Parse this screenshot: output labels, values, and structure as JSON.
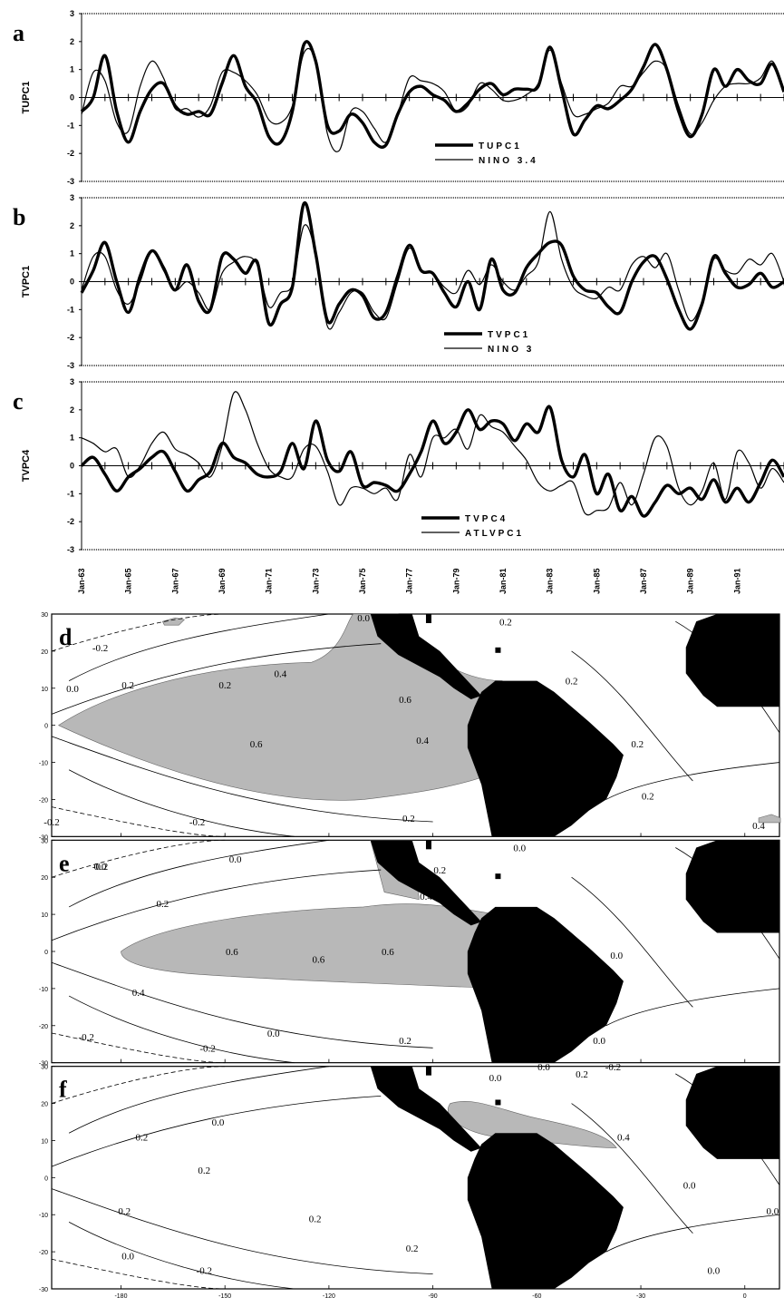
{
  "chart_data": [
    {
      "type": "line",
      "panel_label": "a",
      "ylabel": "TUPC1",
      "ylim": [
        -3,
        3
      ],
      "yticks": [
        "3",
        "2",
        "1",
        "0",
        "-1",
        "-2",
        "-3"
      ],
      "x": [
        1963.0,
        1963.5,
        1964.0,
        1964.5,
        1965.0,
        1965.5,
        1966.0,
        1966.5,
        1967.0,
        1967.5,
        1968.0,
        1968.5,
        1969.0,
        1969.5,
        1970.0,
        1970.5,
        1971.0,
        1971.5,
        1972.0,
        1972.5,
        1973.0,
        1973.5,
        1974.0,
        1974.5,
        1975.0,
        1975.5,
        1976.0,
        1976.5,
        1977.0,
        1977.5,
        1978.0,
        1978.5,
        1979.0,
        1979.5,
        1980.0,
        1980.5,
        1981.0,
        1981.5,
        1982.0,
        1982.5,
        1983.0,
        1983.5,
        1984.0,
        1984.5,
        1985.0,
        1985.5,
        1986.0,
        1986.5,
        1987.0,
        1987.5,
        1988.0,
        1988.5,
        1989.0,
        1989.5,
        1990.0,
        1990.5,
        1991.0,
        1991.5,
        1992.0,
        1992.5,
        1993.0
      ],
      "series": [
        {
          "name": "TUPC1",
          "style": "thick",
          "values": [
            -0.5,
            0.0,
            1.5,
            -0.5,
            -1.6,
            -0.5,
            0.3,
            0.5,
            -0.3,
            -0.6,
            -0.5,
            -0.6,
            0.5,
            1.5,
            0.4,
            -0.2,
            -1.4,
            -1.6,
            -0.5,
            1.9,
            1.3,
            -1.0,
            -1.2,
            -0.6,
            -0.9,
            -1.6,
            -1.7,
            -0.6,
            0.2,
            0.4,
            0.1,
            -0.1,
            -0.5,
            -0.2,
            0.3,
            0.5,
            0.1,
            0.3,
            0.3,
            0.4,
            1.8,
            0.3,
            -1.3,
            -0.8,
            -0.3,
            -0.4,
            -0.1,
            0.3,
            1.1,
            1.9,
            1.0,
            -0.5,
            -1.4,
            -0.6,
            1.0,
            0.4,
            1.0,
            0.6,
            0.5,
            1.2,
            0.2
          ]
        },
        {
          "name": "NINO 3.4",
          "style": "thin",
          "values": [
            -0.6,
            0.9,
            0.6,
            -0.9,
            -1.2,
            0.4,
            1.3,
            0.7,
            -0.4,
            -0.4,
            -0.7,
            -0.3,
            0.9,
            0.9,
            0.6,
            0.1,
            -0.8,
            -0.9,
            -0.3,
            1.6,
            1.3,
            -1.3,
            -1.9,
            -0.5,
            -0.5,
            -1.1,
            -1.6,
            -0.6,
            0.7,
            0.6,
            0.5,
            0.2,
            -0.5,
            -0.3,
            0.5,
            0.3,
            -0.1,
            -0.1,
            0.1,
            0.5,
            1.7,
            0.5,
            -0.6,
            -0.6,
            -0.4,
            -0.2,
            0.4,
            0.4,
            0.9,
            1.3,
            1.0,
            -0.3,
            -1.3,
            -0.9,
            -0.1,
            0.4,
            0.5,
            0.5,
            0.7,
            1.3,
            0.3
          ]
        }
      ]
    },
    {
      "type": "line",
      "panel_label": "b",
      "ylabel": "TVPC1",
      "ylim": [
        -3,
        3
      ],
      "yticks": [
        "3",
        "2",
        "1",
        "0",
        "-1",
        "-2",
        "-3"
      ],
      "x": [
        1963.0,
        1963.5,
        1964.0,
        1964.5,
        1965.0,
        1965.5,
        1966.0,
        1966.5,
        1967.0,
        1967.5,
        1968.0,
        1968.5,
        1969.0,
        1969.5,
        1970.0,
        1970.5,
        1971.0,
        1971.5,
        1972.0,
        1972.5,
        1973.0,
        1973.5,
        1974.0,
        1974.5,
        1975.0,
        1975.5,
        1976.0,
        1976.5,
        1977.0,
        1977.5,
        1978.0,
        1978.5,
        1979.0,
        1979.5,
        1980.0,
        1980.5,
        1981.0,
        1981.5,
        1982.0,
        1982.5,
        1983.0,
        1983.5,
        1984.0,
        1984.5,
        1985.0,
        1985.5,
        1986.0,
        1986.5,
        1987.0,
        1987.5,
        1988.0,
        1988.5,
        1989.0,
        1989.5,
        1990.0,
        1990.5,
        1991.0,
        1991.5,
        1992.0,
        1992.5,
        1993.0
      ],
      "series": [
        {
          "name": "TVPC1",
          "style": "thick",
          "values": [
            -0.4,
            0.4,
            1.4,
            0.0,
            -1.1,
            0.2,
            1.1,
            0.5,
            -0.3,
            0.6,
            -0.7,
            -1.0,
            0.9,
            0.8,
            0.3,
            0.7,
            -1.5,
            -0.8,
            -0.2,
            2.8,
            1.0,
            -1.4,
            -0.8,
            -0.3,
            -0.5,
            -1.3,
            -1.1,
            0.2,
            1.3,
            0.4,
            0.3,
            -0.4,
            -0.9,
            0.0,
            -1.0,
            0.8,
            -0.3,
            -0.4,
            0.5,
            1.0,
            1.4,
            1.3,
            0.2,
            -0.3,
            -0.4,
            -0.9,
            -1.1,
            0.0,
            0.7,
            0.9,
            0.1,
            -1.0,
            -1.7,
            -0.8,
            0.9,
            0.3,
            -0.2,
            -0.1,
            0.3,
            -0.2,
            0.0
          ]
        },
        {
          "name": "NINO 3",
          "style": "thin",
          "values": [
            -0.3,
            0.9,
            0.9,
            -0.3,
            -0.8,
            0.0,
            1.1,
            0.4,
            -0.3,
            0.0,
            -0.4,
            -1.0,
            0.3,
            0.7,
            0.9,
            0.6,
            -0.9,
            -0.4,
            -0.1,
            2.0,
            1.0,
            -1.6,
            -1.1,
            -0.4,
            -0.4,
            -1.1,
            -1.3,
            0.0,
            1.2,
            0.4,
            0.3,
            -0.2,
            -0.4,
            0.4,
            -0.1,
            0.6,
            0.0,
            -0.3,
            0.2,
            0.7,
            2.5,
            0.8,
            -0.2,
            -0.5,
            -0.6,
            -0.2,
            -0.3,
            0.6,
            0.9,
            0.5,
            1.0,
            -0.3,
            -1.4,
            -0.7,
            0.8,
            0.4,
            0.3,
            0.8,
            0.6,
            1.0,
            0.0
          ]
        }
      ]
    },
    {
      "type": "line",
      "panel_label": "c",
      "ylabel": "TVPC4",
      "ylim": [
        -3,
        3
      ],
      "yticks": [
        "3",
        "2",
        "1",
        "0",
        "-1",
        "-2",
        "-3"
      ],
      "xticklabels": [
        "Jan-63",
        "Jan-65",
        "Jan-67",
        "Jan-69",
        "Jan-71",
        "Jan-73",
        "Jan-75",
        "Jan-77",
        "Jan-79",
        "Jan-81",
        "Jan-83",
        "Jan-85",
        "Jan-87",
        "Jan-89",
        "Jan-91"
      ],
      "x": [
        1963.0,
        1963.5,
        1964.0,
        1964.5,
        1965.0,
        1965.5,
        1966.0,
        1966.5,
        1967.0,
        1967.5,
        1968.0,
        1968.5,
        1969.0,
        1969.5,
        1970.0,
        1970.5,
        1971.0,
        1971.5,
        1972.0,
        1972.5,
        1973.0,
        1973.5,
        1974.0,
        1974.5,
        1975.0,
        1975.5,
        1976.0,
        1976.5,
        1977.0,
        1977.5,
        1978.0,
        1978.5,
        1979.0,
        1979.5,
        1980.0,
        1980.5,
        1981.0,
        1981.5,
        1982.0,
        1982.5,
        1983.0,
        1983.5,
        1984.0,
        1984.5,
        1985.0,
        1985.5,
        1986.0,
        1986.5,
        1987.0,
        1987.5,
        1988.0,
        1988.5,
        1989.0,
        1989.5,
        1990.0,
        1990.5,
        1991.0,
        1991.5,
        1992.0,
        1992.5,
        1993.0
      ],
      "series": [
        {
          "name": "TVPC4",
          "style": "thick",
          "values": [
            0.0,
            0.3,
            -0.3,
            -0.9,
            -0.4,
            -0.1,
            0.3,
            0.5,
            -0.2,
            -0.9,
            -0.5,
            -0.2,
            0.8,
            0.3,
            0.1,
            -0.3,
            -0.4,
            -0.2,
            0.8,
            -0.1,
            1.6,
            0.2,
            -0.2,
            0.5,
            -0.7,
            -0.6,
            -0.7,
            -0.9,
            -0.3,
            0.5,
            1.6,
            0.8,
            1.2,
            2.0,
            1.3,
            1.6,
            1.5,
            0.9,
            1.5,
            1.2,
            2.1,
            0.2,
            -0.4,
            0.4,
            -1.0,
            -0.3,
            -1.6,
            -1.1,
            -1.8,
            -1.3,
            -0.7,
            -1.0,
            -0.8,
            -1.2,
            -0.5,
            -1.3,
            -0.8,
            -1.3,
            -0.6,
            0.2,
            -0.4
          ]
        },
        {
          "name": "ATLVPC1",
          "style": "thin",
          "values": [
            1.0,
            0.8,
            0.5,
            0.6,
            -0.4,
            0.0,
            0.8,
            1.2,
            0.6,
            0.4,
            0.1,
            -0.4,
            0.7,
            2.6,
            2.0,
            0.8,
            -0.1,
            -0.4,
            -0.4,
            0.6,
            0.7,
            -0.2,
            -1.4,
            -0.8,
            -0.8,
            -1.0,
            -0.8,
            -1.2,
            0.4,
            -0.4,
            1.0,
            1.0,
            1.3,
            0.6,
            1.8,
            1.4,
            1.2,
            0.7,
            0.2,
            -0.6,
            -0.9,
            -0.7,
            -0.6,
            -1.7,
            -1.6,
            -1.5,
            -0.6,
            -1.4,
            -0.3,
            1.0,
            0.7,
            -0.8,
            -1.4,
            -0.9,
            0.1,
            -1.2,
            0.5,
            0.1,
            -0.8,
            -0.1,
            -0.6
          ]
        }
      ]
    },
    {
      "type": "heatmap",
      "panel_label": "d",
      "xticklabels": [
        "-180",
        "-150",
        "-120",
        "-90",
        "-60",
        "-30",
        "0"
      ],
      "yticklabels": [
        "30",
        "20",
        "10",
        "0",
        "-10",
        "-20",
        "-30"
      ],
      "contour_labels": [
        "-0.2",
        "0.0",
        "0.0",
        "0.2",
        "0.2",
        "0.4",
        "0.6",
        "0.6",
        "0.4",
        "0.2",
        "0.2",
        "0.2",
        "0.2",
        "-0.2",
        "-0.2",
        "0.4",
        "0.2"
      ]
    },
    {
      "type": "heatmap",
      "panel_label": "e",
      "xticklabels": [
        "-180",
        "-150",
        "-120",
        "-90",
        "-60",
        "-30",
        "0"
      ],
      "yticklabels": [
        "30",
        "20",
        "10",
        "0",
        "-10",
        "-20",
        "-30"
      ],
      "contour_labels": [
        "-0.2",
        "0.0",
        "0.2",
        "0.4",
        "0.2",
        "0.6",
        "0.6",
        "0.6",
        "0.4",
        "0.2",
        "0.0",
        "-0.2",
        "-0.2",
        "0.0",
        "0.0",
        "0.0",
        "0.0"
      ]
    },
    {
      "type": "heatmap",
      "panel_label": "f",
      "xticklabels": [
        "-180",
        "-150",
        "-120",
        "-90",
        "-60",
        "-30",
        "0"
      ],
      "yticklabels": [
        "30",
        "20",
        "10",
        "0",
        "-10",
        "-20",
        "-30"
      ],
      "contour_labels": [
        "0.0",
        "0.0",
        "0.0",
        "-0.2",
        "0.2",
        "0.4",
        "0.2",
        "0.2",
        "0.2",
        "0.2",
        "0.2",
        "0.0",
        "0.0",
        "0.0",
        "-0.2",
        "0.2",
        "0.0"
      ]
    }
  ]
}
